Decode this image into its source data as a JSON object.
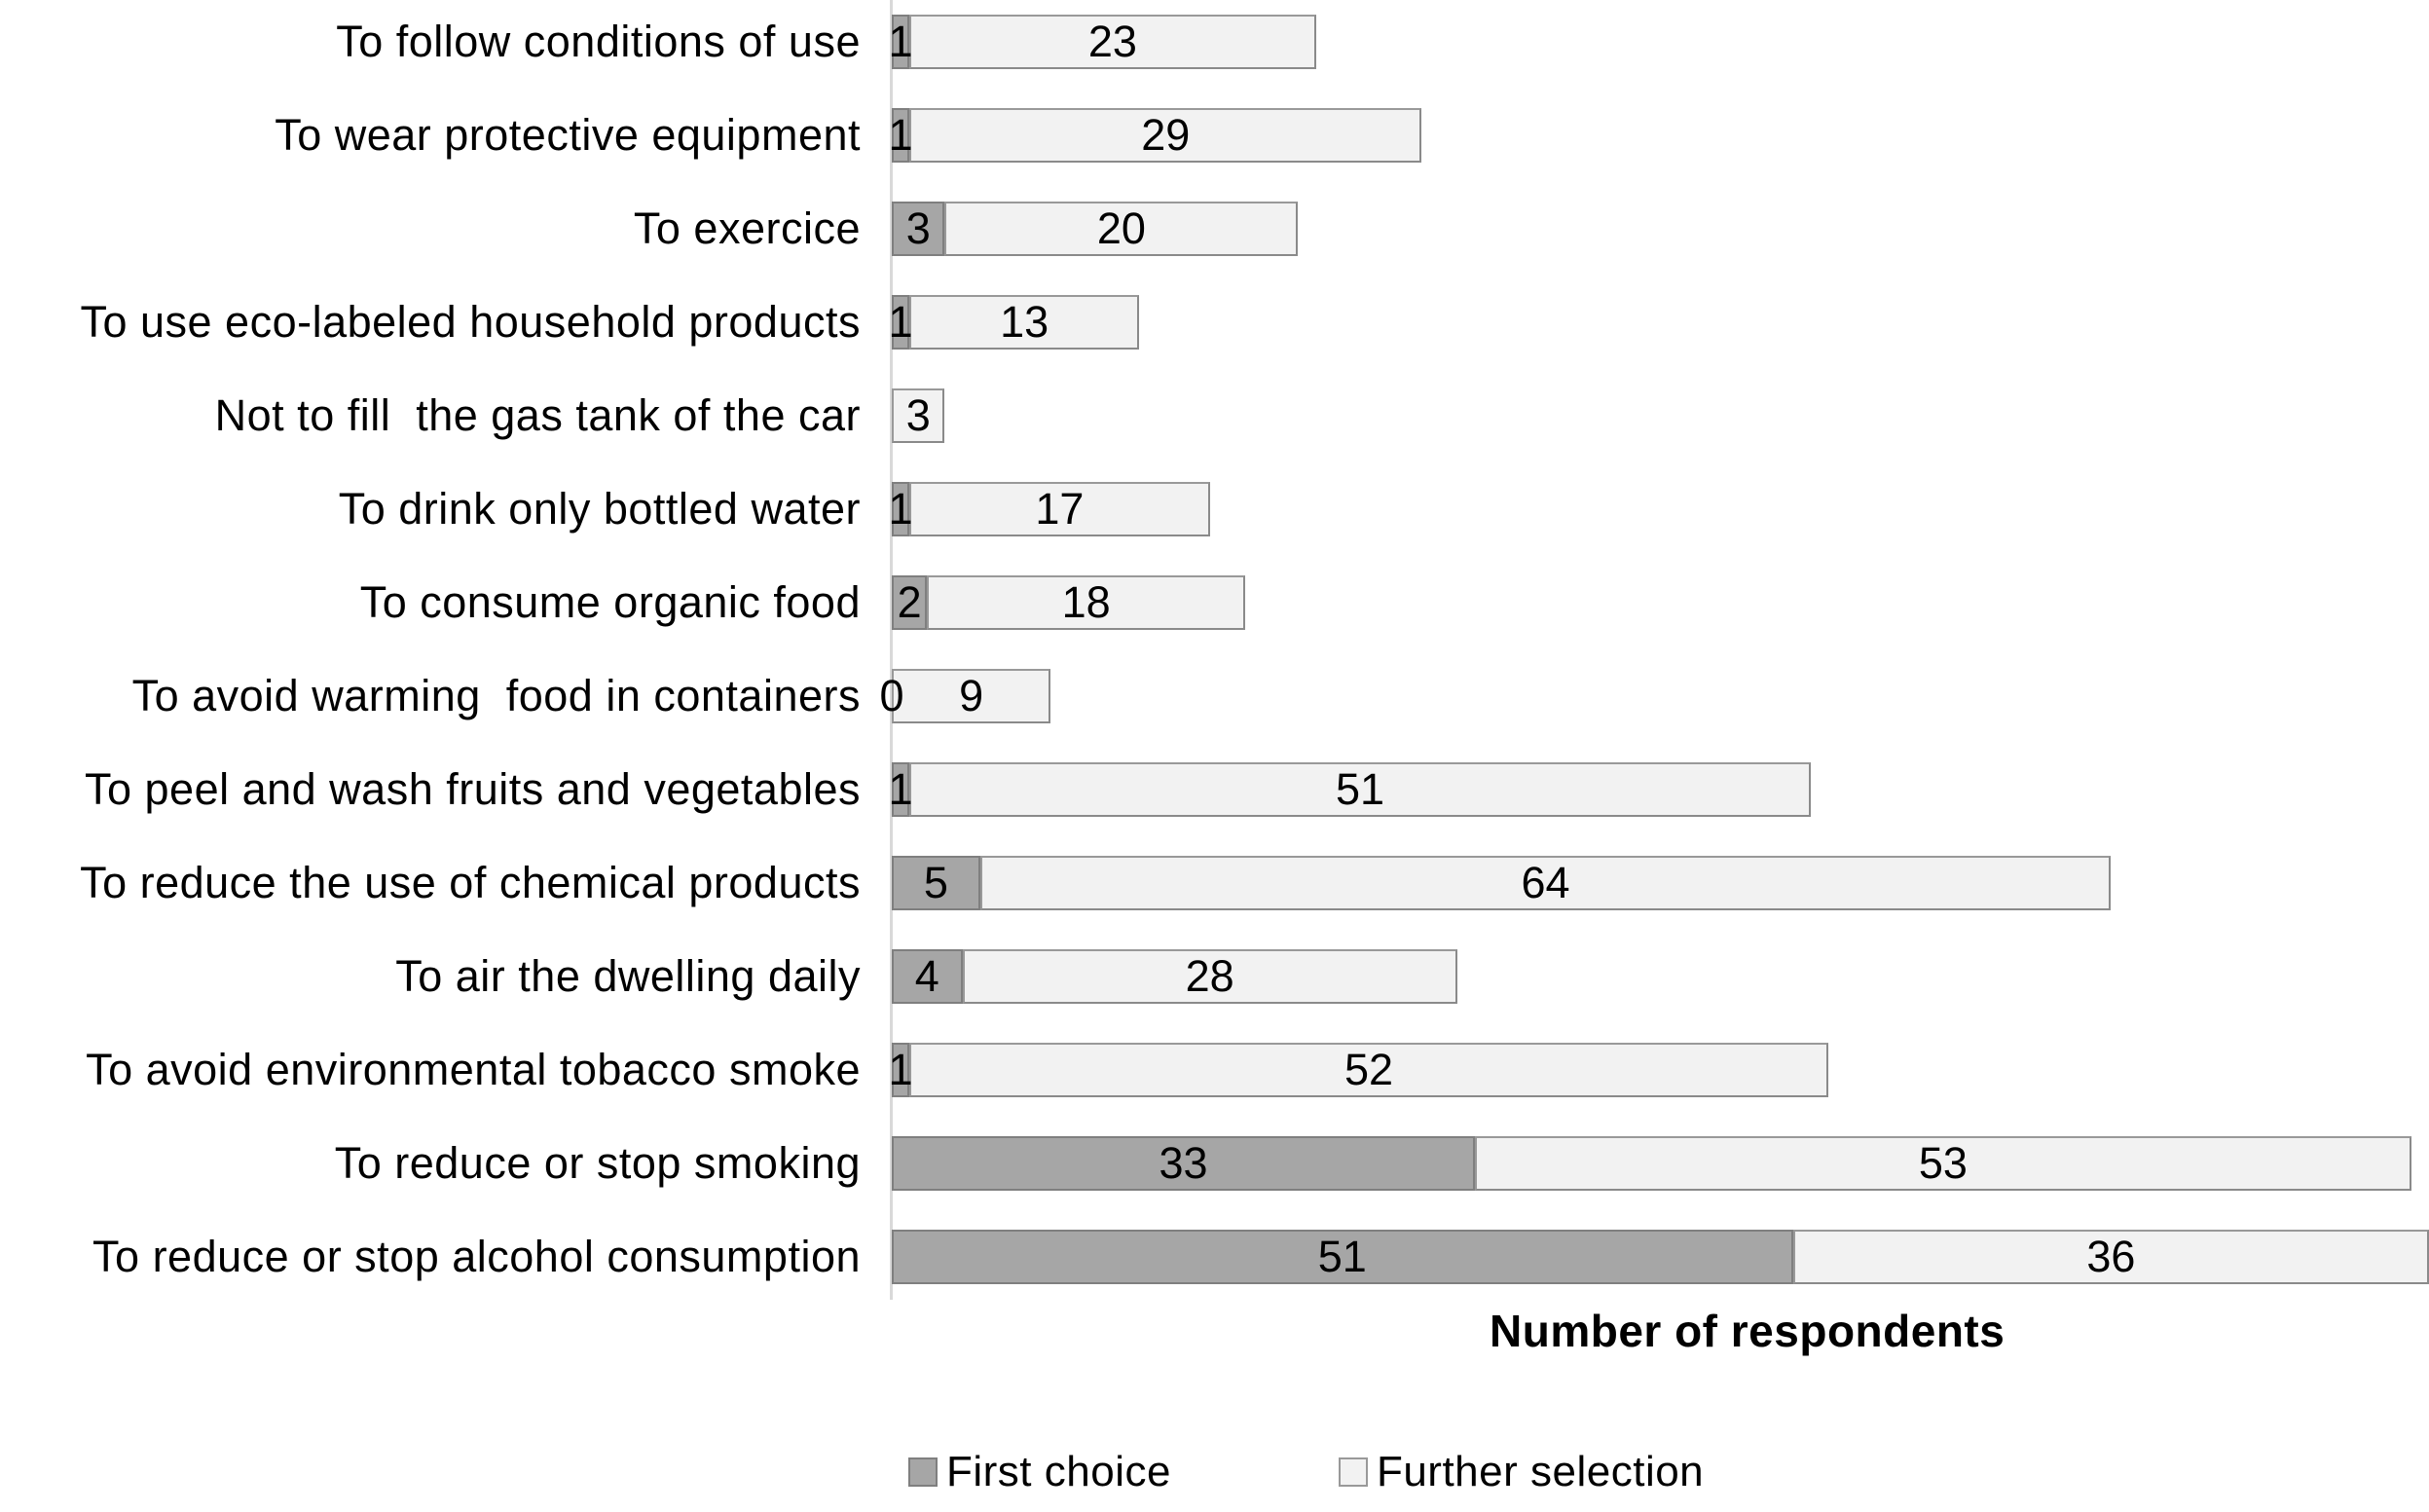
{
  "chart_data": {
    "type": "bar",
    "orientation": "horizontal",
    "stacked": true,
    "grid": false,
    "legend_position": "bottom",
    "xlabel": "Number of respondents",
    "xlim": [
      0,
      87
    ],
    "categories": [
      "To follow conditions of use",
      "To wear protective equipment",
      "To exercice",
      "To use eco-labeled household products",
      "Not to fill  the gas tank of the car",
      "To drink only bottled water",
      "To consume organic food",
      "To avoid warming  food in containers",
      "To peel and wash fruits and vegetables",
      "To reduce the use of chemical products",
      "To air the dwelling daily",
      "To avoid environmental tobacco smoke",
      "To reduce or stop smoking",
      "To reduce or stop alcohol consumption"
    ],
    "series": [
      {
        "name": "First choice",
        "color": "#a6a6a6",
        "values": [
          1,
          1,
          3,
          1,
          null,
          1,
          2,
          0,
          1,
          5,
          4,
          1,
          33,
          51
        ]
      },
      {
        "name": "Further selection",
        "color": "#f2f2f2",
        "values": [
          23,
          29,
          20,
          13,
          3,
          17,
          18,
          9,
          51,
          64,
          28,
          52,
          53,
          36
        ]
      }
    ]
  },
  "colors": {
    "first_choice": "#a6a6a6",
    "further_selection": "#f2f2f2",
    "bar_border_dark": "#7f7f7f",
    "bar_border_light": "#999999",
    "axis_line": "#d9d9d9"
  },
  "legend": {
    "items": [
      {
        "label": "First choice",
        "swatch": "first-choice-swatch"
      },
      {
        "label": "Further selection",
        "swatch": "further-selection-swatch"
      }
    ]
  }
}
